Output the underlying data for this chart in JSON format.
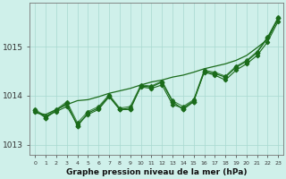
{
  "x": [
    0,
    1,
    2,
    3,
    4,
    5,
    6,
    7,
    8,
    9,
    10,
    11,
    12,
    13,
    14,
    15,
    16,
    17,
    18,
    19,
    20,
    21,
    22,
    23
  ],
  "y_main": [
    1013.7,
    1013.55,
    1013.7,
    1013.85,
    1013.38,
    1013.65,
    1013.75,
    1014.0,
    1013.72,
    1013.72,
    1014.2,
    1014.18,
    1014.28,
    1013.88,
    1013.72,
    1013.88,
    1014.5,
    1014.45,
    1014.38,
    1014.58,
    1014.7,
    1014.88,
    1015.18,
    1015.58
  ],
  "y_smooth": [
    1013.65,
    1013.62,
    1013.72,
    1013.82,
    1013.9,
    1013.92,
    1013.98,
    1014.05,
    1014.1,
    1014.15,
    1014.22,
    1014.28,
    1014.32,
    1014.38,
    1014.42,
    1014.48,
    1014.55,
    1014.6,
    1014.65,
    1014.72,
    1014.82,
    1014.98,
    1015.15,
    1015.58
  ],
  "y_line3": [
    1013.68,
    1013.58,
    1013.68,
    1013.78,
    1013.42,
    1013.62,
    1013.72,
    1013.98,
    1013.72,
    1013.75,
    1014.18,
    1014.15,
    1014.22,
    1013.82,
    1013.75,
    1013.9,
    1014.48,
    1014.42,
    1014.32,
    1014.52,
    1014.65,
    1014.82,
    1015.1,
    1015.52
  ],
  "y_line4": [
    1013.72,
    1013.58,
    1013.72,
    1013.88,
    1013.45,
    1013.68,
    1013.78,
    1014.02,
    1013.75,
    1013.78,
    1014.22,
    1014.2,
    1014.3,
    1013.9,
    1013.78,
    1013.92,
    1014.52,
    1014.48,
    1014.4,
    1014.6,
    1014.72,
    1014.9,
    1015.2,
    1015.6
  ],
  "ylim": [
    1012.8,
    1015.9
  ],
  "yticks": [
    1013,
    1014,
    1015
  ],
  "xlim": [
    -0.5,
    23.5
  ],
  "line_color": "#1a6b1a",
  "bg_color": "#cff0ea",
  "grid_color": "#a8d8d0",
  "xlabel": "Graphe pression niveau de la mer (hPa)"
}
